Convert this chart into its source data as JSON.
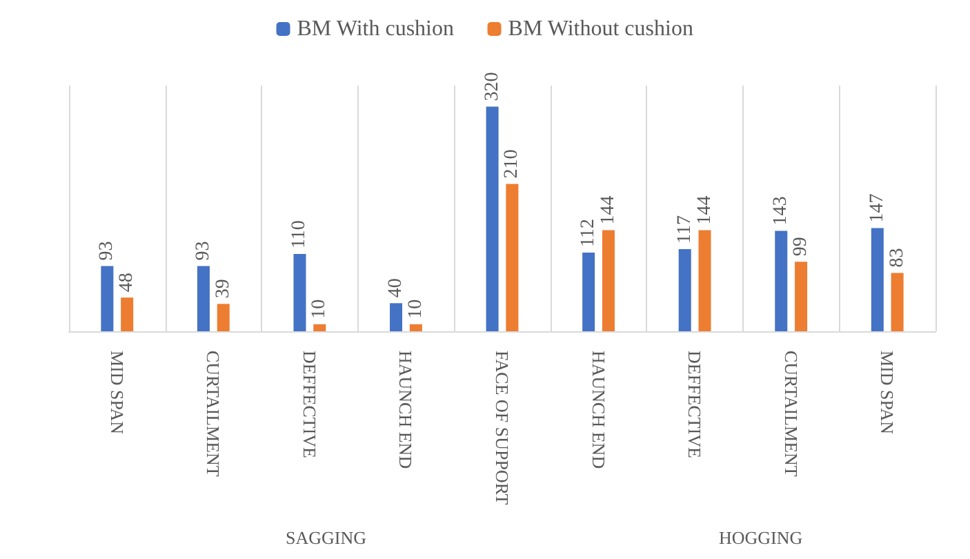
{
  "chart_data": {
    "type": "bar",
    "categories": [
      "MID SPAN",
      "CURTAILMENT",
      "DEFFECTIVE",
      "HAUNCH END",
      "FACE OF SUPPORT",
      "HAUNCH END",
      "DEFFECTIVE",
      "CURTAILMENT",
      "MID SPAN"
    ],
    "series": [
      {
        "name": "BM With cushion",
        "color": "#4472c4",
        "values": [
          93,
          93,
          110,
          40,
          320,
          112,
          117,
          143,
          147
        ]
      },
      {
        "name": "BM Without cushion",
        "color": "#ed7d31",
        "values": [
          48,
          39,
          10,
          10,
          210,
          144,
          144,
          99,
          83
        ]
      }
    ],
    "data_labels": true,
    "legend": "top",
    "grid": "x",
    "annotations": [
      "SAGGING",
      "HOGGING"
    ]
  }
}
